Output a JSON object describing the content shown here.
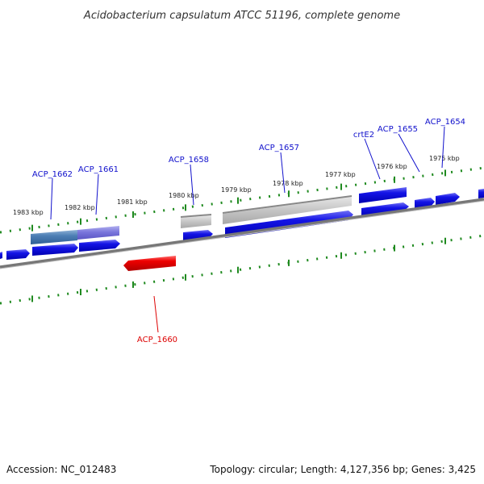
{
  "title": "Acidobacterium capsulatum ATCC 51196, complete genome",
  "footer": {
    "accession": "Accession: NC_012483",
    "summary": "Topology: circular; Length: 4,127,356 bp; Genes: 3,425"
  },
  "colors": {
    "forward_gene": "#0a0ae6",
    "reverse_gene_highlight": "#ee0000",
    "backbone": "#777777",
    "tick": "#1f8a1f",
    "label_blue": "#1010cc",
    "label_red": "#dd0000"
  },
  "ticks": [
    {
      "label": "1983 kbp"
    },
    {
      "label": "1982 kbp"
    },
    {
      "label": "1981 kbp"
    },
    {
      "label": "1980 kbp"
    },
    {
      "label": "1979 kbp"
    },
    {
      "label": "1978 kbp"
    },
    {
      "label": "1977 kbp"
    },
    {
      "label": "1976 kbp"
    },
    {
      "label": "1975 kbp"
    }
  ],
  "gene_labels": [
    {
      "text": "ACP_1662",
      "strand": "forward"
    },
    {
      "text": "ACP_1661",
      "strand": "forward"
    },
    {
      "text": "ACP_1658",
      "strand": "forward"
    },
    {
      "text": "ACP_1657",
      "strand": "forward"
    },
    {
      "text": "crtE2",
      "strand": "forward"
    },
    {
      "text": "ACP_1655",
      "strand": "forward"
    },
    {
      "text": "ACP_1654",
      "strand": "forward"
    },
    {
      "text": "ACP_1660",
      "strand": "reverse"
    }
  ]
}
